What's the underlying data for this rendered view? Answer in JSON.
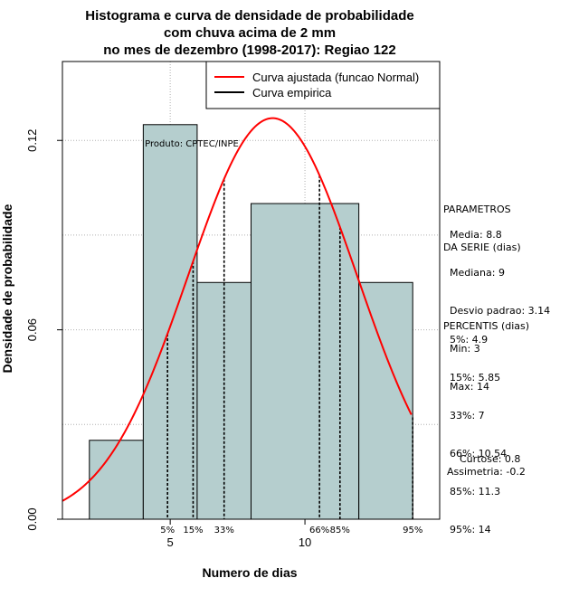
{
  "chart_data": {
    "type": "bar",
    "title": [
      "Histograma e curva de densidade de probabilidade",
      "com chuva acima de 2 mm",
      "no mes de dezembro (1998-2017): Regiao 122"
    ],
    "xlabel": "Numero de dias",
    "ylabel": "Densidade de probabilidade",
    "xlim": [
      1.0,
      15.0
    ],
    "ylim": [
      0.0,
      0.145
    ],
    "xticks": [
      5,
      10
    ],
    "yticks": [
      0.0,
      0.06,
      0.12
    ],
    "ytick_labels": [
      "0.00",
      "0.06",
      "0.12"
    ],
    "grid": true,
    "credit": "Produto: CPTEC/INPE",
    "bins": [
      {
        "x0": 2,
        "x1": 4,
        "density": 0.025
      },
      {
        "x0": 4,
        "x1": 6,
        "density": 0.125
      },
      {
        "x0": 6,
        "x1": 8,
        "density": 0.075
      },
      {
        "x0": 8,
        "x1": 12,
        "density": 0.1
      },
      {
        "x0": 12,
        "x1": 14,
        "density": 0.075
      }
    ],
    "bar_color": "#b5cece",
    "normal_fit": {
      "mean": 8.8,
      "sd": 3.14,
      "color": "#ff0000"
    },
    "percentiles": [
      {
        "label": "5%",
        "value": 4.9
      },
      {
        "label": "15%",
        "value": 5.85
      },
      {
        "label": "33%",
        "value": 7
      },
      {
        "label": "66%",
        "value": 10.54
      },
      {
        "label": "85%",
        "value": 11.3
      },
      {
        "label": "95%",
        "value": 14
      }
    ],
    "legend": {
      "position": "top-right",
      "entries": [
        {
          "label": "Curva ajustada (funcao Normal)",
          "color": "#ff0000"
        },
        {
          "label": "Curva empirica",
          "color": "#000000"
        }
      ]
    }
  },
  "side_panel": {
    "params_heading": [
      "PARAMETROS",
      "DA SERIE (dias)"
    ],
    "params": [
      "Media: 8.8",
      "Mediana: 9",
      "Desvio padrao: 3.14",
      "Min: 3",
      "Max: 14"
    ],
    "percentis_heading": "PERCENTIS (dias)",
    "percentis": [
      "5%: 4.9",
      "15%: 5.85",
      "33%: 7",
      "66%: 10.54",
      "85%: 11.3",
      "95%: 14"
    ],
    "curtose": "Curtose: 0.8",
    "assimetria": "Assimetria: -0.2"
  }
}
